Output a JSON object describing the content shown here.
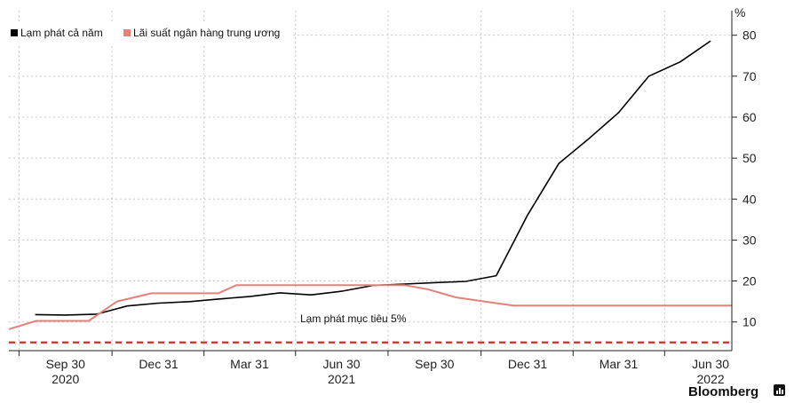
{
  "chart_data": {
    "type": "line",
    "y_unit": "%",
    "ylim": [
      3,
      86
    ],
    "y_ticks": [
      10,
      20,
      30,
      40,
      50,
      60,
      70,
      80
    ],
    "x_range": [
      "2020-08-05",
      "2022-07-21"
    ],
    "x_ticks": [
      {
        "date": "2020-09-30",
        "label": "Sep 30"
      },
      {
        "date": "2020-12-31",
        "label": "Dec 31"
      },
      {
        "date": "2021-03-31",
        "label": "Mar 31"
      },
      {
        "date": "2021-06-30",
        "label": "Jun 30"
      },
      {
        "date": "2021-09-30",
        "label": "Sep 30"
      },
      {
        "date": "2021-12-31",
        "label": "Dec 31"
      },
      {
        "date": "2022-03-31",
        "label": "Mar 31"
      },
      {
        "date": "2022-06-30",
        "label": "Jun 30"
      }
    ],
    "year_labels": [
      {
        "date": "2020-09-30",
        "label": "2020"
      },
      {
        "date": "2021-06-30",
        "label": "2021"
      },
      {
        "date": "2022-06-30",
        "label": "2022"
      }
    ],
    "grid": true,
    "legend_position": "top-left",
    "series": [
      {
        "name": "Lạm phát cả năm",
        "color": "#000000",
        "points": [
          [
            "2020-08-31",
            11.8
          ],
          [
            "2020-09-30",
            11.7
          ],
          [
            "2020-10-31",
            11.9
          ],
          [
            "2020-11-30",
            13.9
          ],
          [
            "2020-12-31",
            14.6
          ],
          [
            "2021-01-31",
            14.97
          ],
          [
            "2021-02-28",
            15.6
          ],
          [
            "2021-03-31",
            16.2
          ],
          [
            "2021-04-30",
            17.1
          ],
          [
            "2021-05-31",
            16.6
          ],
          [
            "2021-06-30",
            17.5
          ],
          [
            "2021-07-31",
            18.9
          ],
          [
            "2021-08-31",
            19.25
          ],
          [
            "2021-09-30",
            19.6
          ],
          [
            "2021-10-31",
            19.9
          ],
          [
            "2021-11-30",
            21.3
          ],
          [
            "2021-12-31",
            36.1
          ],
          [
            "2022-01-31",
            48.7
          ],
          [
            "2022-02-28",
            54.4
          ],
          [
            "2022-03-31",
            61.1
          ],
          [
            "2022-04-30",
            70.0
          ],
          [
            "2022-05-31",
            73.5
          ],
          [
            "2022-06-30",
            78.6
          ]
        ]
      },
      {
        "name": "Lãi suất ngân hàng trung ương",
        "color": "#e8807a",
        "points": [
          [
            "2020-08-05",
            8.25
          ],
          [
            "2020-09-01",
            10.25
          ],
          [
            "2020-09-30",
            10.25
          ],
          [
            "2020-10-23",
            10.25
          ],
          [
            "2020-11-20",
            15.0
          ],
          [
            "2020-12-24",
            17.0
          ],
          [
            "2021-01-31",
            17.0
          ],
          [
            "2021-02-28",
            17.0
          ],
          [
            "2021-03-18",
            19.0
          ],
          [
            "2021-04-30",
            19.0
          ],
          [
            "2021-06-30",
            19.0
          ],
          [
            "2021-08-31",
            19.0
          ],
          [
            "2021-09-23",
            18.0
          ],
          [
            "2021-10-21",
            16.0
          ],
          [
            "2021-11-18",
            15.0
          ],
          [
            "2021-12-17",
            14.0
          ],
          [
            "2022-03-31",
            14.0
          ],
          [
            "2022-07-21",
            14.0
          ]
        ]
      }
    ],
    "reference_lines": [
      {
        "value": 5,
        "label": "Lạm phát mục tiêu 5%",
        "color": "#d22b2b",
        "style": "dashed"
      }
    ]
  },
  "branding": {
    "text": "Bloomberg"
  }
}
